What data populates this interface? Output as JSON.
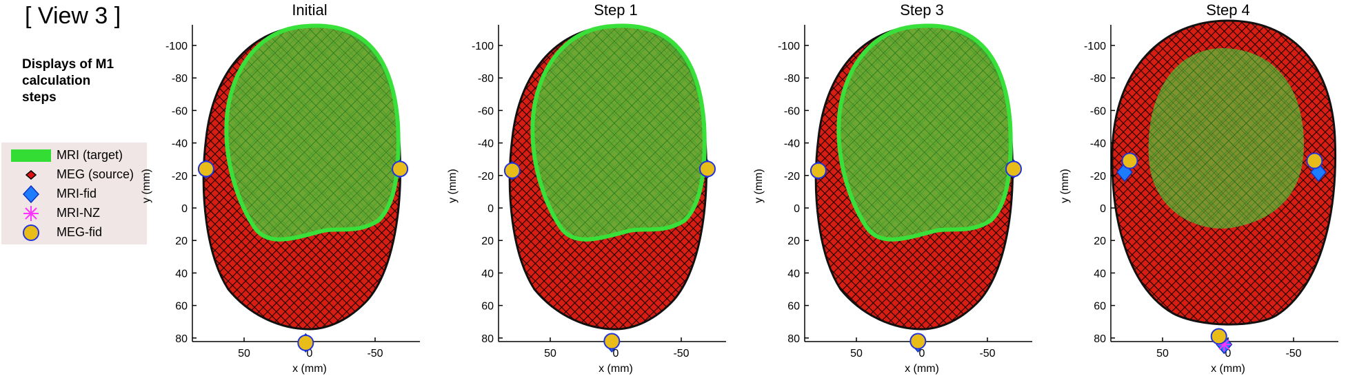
{
  "header": {
    "view_label": "[ View 3 ]",
    "subtitle": "Displays of M1 calculation steps"
  },
  "legend": {
    "items": [
      {
        "label": "MRI (target)",
        "symbol": "green-patch-icon",
        "color": "#33dd33"
      },
      {
        "label": "MEG (source)",
        "symbol": "red-diamond-icon",
        "color": "#dd1111"
      },
      {
        "label": "MRI-fid",
        "symbol": "blue-diamond-icon",
        "color": "#1e7cff"
      },
      {
        "label": "MRI-NZ",
        "symbol": "magenta-asterisk-icon",
        "color": "#ff33ff"
      },
      {
        "label": "MEG-fid",
        "symbol": "yellow-circle-icon",
        "color": "#e8bd1a"
      }
    ]
  },
  "chart_data": [
    {
      "type": "scatter",
      "title": "Initial",
      "xlabel": "x (mm)",
      "ylabel": "y (mm)",
      "xticks": [
        50,
        0,
        -50
      ],
      "yticks": [
        -100,
        -80,
        -60,
        -40,
        -20,
        0,
        20,
        40,
        60,
        80
      ],
      "x_reversed": true,
      "y_reversed": true,
      "series": [
        {
          "name": "MRI-fid",
          "x": [
            -69,
            79,
            3
          ],
          "y": [
            -24,
            -24,
            83
          ]
        },
        {
          "name": "MEG-fid",
          "x": [
            -69,
            79,
            3
          ],
          "y": [
            -24,
            -24,
            83
          ]
        }
      ]
    },
    {
      "type": "scatter",
      "title": "Step 1",
      "xlabel": "x (mm)",
      "ylabel": "y (mm)",
      "xticks": [
        50,
        0,
        -50
      ],
      "yticks": [
        -100,
        -80,
        -60,
        -40,
        -20,
        0,
        20,
        40,
        60,
        80
      ],
      "x_reversed": true,
      "y_reversed": true,
      "series": [
        {
          "name": "MRI-fid",
          "x": [
            -70,
            79,
            3
          ],
          "y": [
            -24,
            -23,
            83
          ]
        },
        {
          "name": "MEG-fid",
          "x": [
            -70,
            79,
            3
          ],
          "y": [
            -24,
            -23,
            82
          ]
        }
      ]
    },
    {
      "type": "scatter",
      "title": "Step 3",
      "xlabel": "x (mm)",
      "ylabel": "y (mm)",
      "xticks": [
        50,
        0,
        -50
      ],
      "yticks": [
        -100,
        -80,
        -60,
        -40,
        -20,
        0,
        20,
        40,
        60,
        80
      ],
      "x_reversed": true,
      "y_reversed": true,
      "series": [
        {
          "name": "MRI-fid",
          "x": [
            -70,
            79,
            3
          ],
          "y": [
            -24,
            -23,
            83
          ]
        },
        {
          "name": "MEG-fid",
          "x": [
            -70,
            79,
            3
          ],
          "y": [
            -24,
            -23,
            82
          ]
        }
      ]
    },
    {
      "type": "scatter",
      "title": "Step 4",
      "xlabel": "x (mm)",
      "ylabel": "y (mm)",
      "xticks": [
        50,
        0,
        -50
      ],
      "yticks": [
        -100,
        -80,
        -60,
        -40,
        -20,
        0,
        20,
        40,
        60,
        80
      ],
      "x_reversed": true,
      "y_reversed": true,
      "series": [
        {
          "name": "MRI-fid",
          "x": [
            -69,
            79,
            3
          ],
          "y": [
            -22,
            -22,
            84
          ]
        },
        {
          "name": "MRI-NZ",
          "x": [
            3
          ],
          "y": [
            84
          ]
        },
        {
          "name": "MEG-fid",
          "x": [
            -66,
            75,
            7
          ],
          "y": [
            -29,
            -29,
            79
          ]
        }
      ]
    }
  ]
}
